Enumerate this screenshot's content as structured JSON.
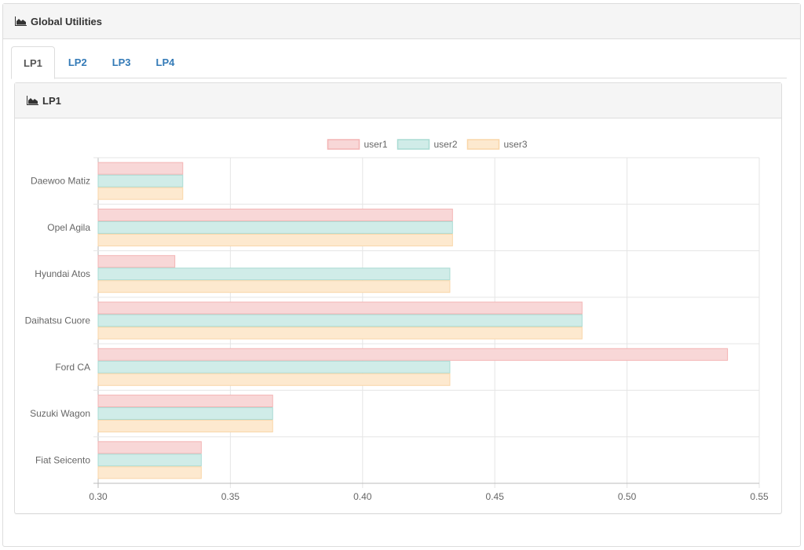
{
  "header": {
    "title": "Global Utilities"
  },
  "tabs": [
    {
      "label": "LP1",
      "active": true
    },
    {
      "label": "LP2",
      "active": false
    },
    {
      "label": "LP3",
      "active": false
    },
    {
      "label": "LP4",
      "active": false
    }
  ],
  "panel": {
    "title": "LP1"
  },
  "chart_data": {
    "type": "bar",
    "orientation": "horizontal",
    "title": "",
    "categories": [
      "Daewoo Matiz",
      "Opel Agila",
      "Hyundai Atos",
      "Daihatsu Cuore",
      "Ford CA",
      "Suzuki Wagon",
      "Fiat Seicento"
    ],
    "series": [
      {
        "name": "user1",
        "values": [
          0.332,
          0.434,
          0.329,
          0.483,
          0.538,
          0.366,
          0.339
        ],
        "color": "#f8d7d7",
        "border": "#f3b4b4"
      },
      {
        "name": "user2",
        "values": [
          0.332,
          0.434,
          0.433,
          0.483,
          0.433,
          0.366,
          0.339
        ],
        "color": "#d0ece8",
        "border": "#a9dbd3"
      },
      {
        "name": "user3",
        "values": [
          0.332,
          0.434,
          0.433,
          0.483,
          0.433,
          0.366,
          0.339
        ],
        "color": "#fde9cf",
        "border": "#f9d6a8"
      }
    ],
    "xlim": [
      0.3,
      0.55
    ],
    "xticks": [
      "0.30",
      "0.35",
      "0.40",
      "0.45",
      "0.50",
      "0.55"
    ],
    "xlabel": "",
    "ylabel": "",
    "legend_position": "top",
    "grid": true
  }
}
